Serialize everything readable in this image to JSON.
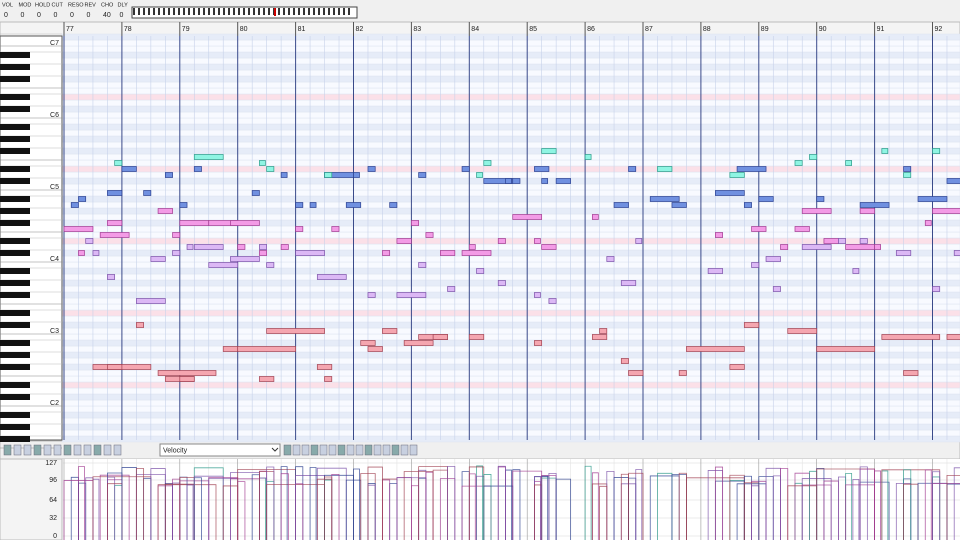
{
  "toolbar": {
    "controls": [
      {
        "name": "VOL",
        "value": "0"
      },
      {
        "name": "MOD",
        "value": "0"
      },
      {
        "name": "HOLD",
        "value": "0"
      },
      {
        "name": "CUT",
        "value": "0"
      },
      {
        "name": "RESO",
        "value": "0"
      },
      {
        "name": "REV",
        "value": "0"
      },
      {
        "name": "CHO",
        "value": "40"
      },
      {
        "name": "DLY",
        "value": "0"
      }
    ]
  },
  "ruler": {
    "measures": [
      "77",
      "78",
      "79",
      "80",
      "81",
      "82",
      "83",
      "84",
      "85",
      "86",
      "87",
      "88",
      "89",
      "90",
      "91",
      "92"
    ]
  },
  "keyboard": {
    "octaves": [
      "C7",
      "C6",
      "C5",
      "C4",
      "C3",
      "C2"
    ]
  },
  "editor": {
    "parameter": "Velocity",
    "scale": [
      "127",
      "96",
      "64",
      "32",
      "0"
    ]
  }
}
